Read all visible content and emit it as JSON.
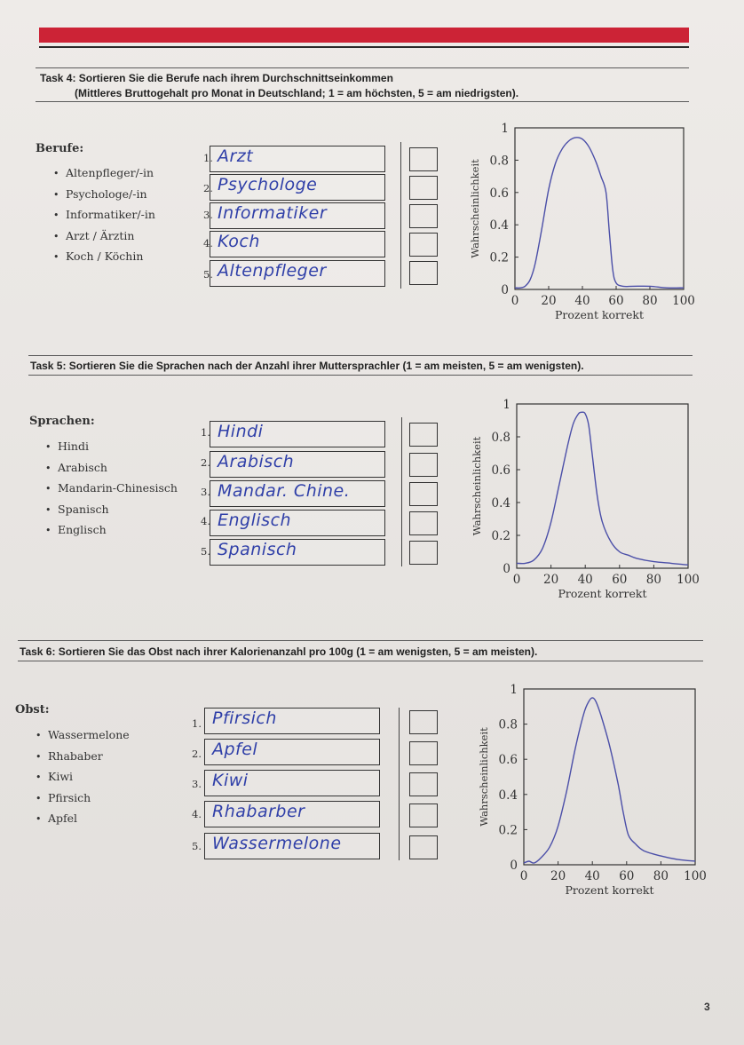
{
  "tasks": [
    {
      "title_line1": "Task 4:  Sortieren Sie die Berufe nach ihrem Durchschnittseinkommen",
      "title_line2": "(Mittleres Bruttogehalt pro Monat in Deutschland; 1 = am höchsten, 5 = am niedrigsten).",
      "category_label": "Berufe:",
      "items": [
        "Altenpfleger/-in",
        "Psychologe/-in",
        "Informatiker/-in",
        "Arzt / Ärztin",
        "Koch / Köchin"
      ],
      "rank_labels": [
        "1.",
        "2.",
        "3.",
        "4.",
        "5."
      ],
      "answers": [
        "Arzt",
        "Psychologe",
        "Informatiker",
        "Koch",
        "Altenpfleger"
      ]
    },
    {
      "title_line1": "Task 5:  Sortieren Sie die Sprachen nach der Anzahl ihrer Muttersprachler (1 = am meisten, 5 = am wenigsten).",
      "title_line2": "",
      "category_label": "Sprachen:",
      "items": [
        "Hindi",
        "Arabisch",
        "Mandarin-Chinesisch",
        "Spanisch",
        "Englisch"
      ],
      "rank_labels": [
        "1.",
        "2.",
        "3.",
        "4.",
        "5."
      ],
      "answers": [
        "Hindi",
        "Arabisch",
        "Mandar. Chine.",
        "Englisch",
        "Spanisch"
      ]
    },
    {
      "title_line1": "Task 6:  Sortieren Sie das Obst nach ihrer Kalorienanzahl pro 100g (1 = am wenigsten, 5 = am meisten).",
      "title_line2": "",
      "category_label": "Obst:",
      "items": [
        "Wassermelone",
        "Rhababer",
        "Kiwi",
        "Pfirsich",
        "Apfel"
      ],
      "rank_labels": [
        "1.",
        "2.",
        "3.",
        "4.",
        "5."
      ],
      "answers": [
        "Pfirsich",
        "Apfel",
        "Kiwi",
        "Rhabarber",
        "Wassermelone"
      ]
    }
  ],
  "chart_data": [
    {
      "type": "line",
      "xlabel": "Prozent korrekt",
      "ylabel": "Wahrscheinlichkeit",
      "xlim": [
        0,
        100
      ],
      "ylim": [
        0,
        1
      ],
      "xticks": [
        "0",
        "20",
        "40",
        "60",
        "80",
        "100"
      ],
      "yticks": [
        "0",
        "0.2",
        "0.4",
        "0.6",
        "0.8",
        "1"
      ],
      "grid": false,
      "line_color": "#4b4fa8",
      "x": [
        0,
        3,
        6,
        9,
        12,
        16,
        20,
        24,
        28,
        32,
        36,
        40,
        44,
        48,
        51,
        54,
        56,
        58,
        60,
        64,
        70,
        80,
        90,
        100
      ],
      "y": [
        0.01,
        0.01,
        0.02,
        0.06,
        0.16,
        0.38,
        0.62,
        0.78,
        0.87,
        0.92,
        0.94,
        0.93,
        0.88,
        0.79,
        0.7,
        0.6,
        0.35,
        0.12,
        0.04,
        0.02,
        0.02,
        0.02,
        0.01,
        0.01
      ]
    },
    {
      "type": "line",
      "xlabel": "Prozent korrekt",
      "ylabel": "Wahrscheinlichkeit",
      "xlim": [
        0,
        100
      ],
      "ylim": [
        0,
        1
      ],
      "xticks": [
        "0",
        "20",
        "40",
        "60",
        "80",
        "100"
      ],
      "yticks": [
        "0",
        "0.2",
        "0.4",
        "0.6",
        "0.8",
        "1"
      ],
      "grid": false,
      "line_color": "#4b4fa8",
      "x": [
        0,
        5,
        10,
        15,
        20,
        25,
        30,
        33,
        36,
        38,
        40,
        42,
        44,
        47,
        50,
        55,
        60,
        65,
        70,
        80,
        90,
        100
      ],
      "y": [
        0.03,
        0.03,
        0.05,
        0.12,
        0.28,
        0.52,
        0.76,
        0.88,
        0.94,
        0.95,
        0.94,
        0.87,
        0.7,
        0.44,
        0.28,
        0.16,
        0.1,
        0.08,
        0.06,
        0.04,
        0.03,
        0.02
      ]
    },
    {
      "type": "line",
      "xlabel": "Prozent korrekt",
      "ylabel": "Wahrscheinlichkeit",
      "xlim": [
        0,
        100
      ],
      "ylim": [
        0,
        1
      ],
      "xticks": [
        "0",
        "20",
        "40",
        "60",
        "80",
        "100"
      ],
      "yticks": [
        "0",
        "0.2",
        "0.4",
        "0.6",
        "0.8",
        "1"
      ],
      "grid": false,
      "line_color": "#4b4fa8",
      "x": [
        0,
        3,
        6,
        10,
        15,
        20,
        25,
        30,
        35,
        38,
        40,
        42,
        45,
        50,
        55,
        58,
        61,
        65,
        70,
        80,
        90,
        100
      ],
      "y": [
        0.01,
        0.02,
        0.01,
        0.04,
        0.1,
        0.22,
        0.42,
        0.66,
        0.86,
        0.93,
        0.95,
        0.93,
        0.85,
        0.68,
        0.46,
        0.3,
        0.17,
        0.12,
        0.08,
        0.05,
        0.03,
        0.02
      ]
    }
  ],
  "page": {
    "number": "3"
  }
}
